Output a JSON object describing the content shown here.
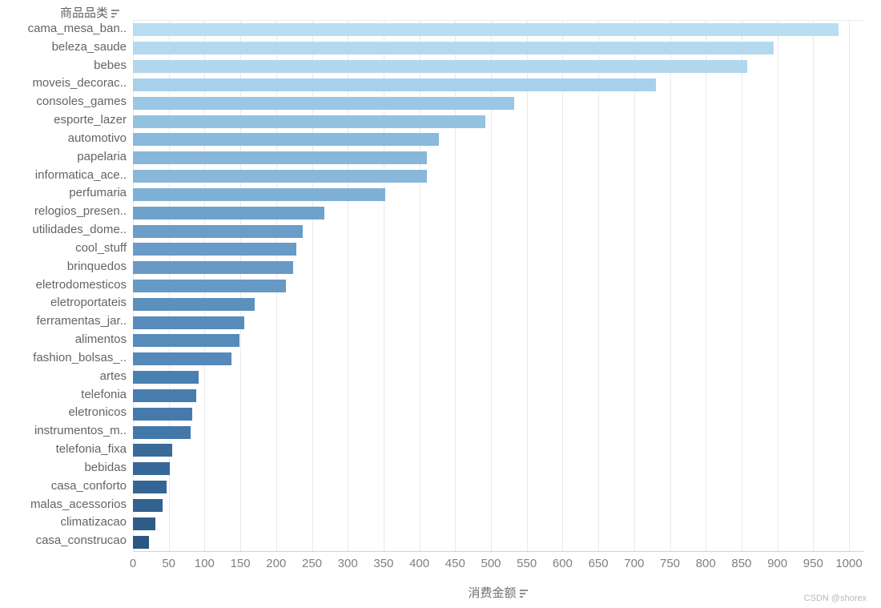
{
  "header": {
    "field_label": "商品品类"
  },
  "axis": {
    "title": "消费金额"
  },
  "watermark": "CSDN @shorex",
  "colors": {
    "background": "#ffffff",
    "gridline": "#e9e9e9",
    "axis_line": "#d4d4d4",
    "label_text": "#646464",
    "tick_text": "#808080",
    "watermark_text": "#b9b9b9"
  },
  "chart_data": {
    "type": "bar",
    "orientation": "horizontal",
    "title": "",
    "xlabel": "消费金额",
    "ylabel": "商品品类",
    "xlim": [
      0,
      1000
    ],
    "grid": true,
    "legend": false,
    "x_ticks": [
      0,
      50,
      100,
      150,
      200,
      250,
      300,
      350,
      400,
      450,
      500,
      550,
      600,
      650,
      700,
      750,
      800,
      850,
      900,
      950,
      1000
    ],
    "categories": [
      "cama_mesa_ban..",
      "beleza_saude",
      "bebes",
      "moveis_decorac..",
      "consoles_games",
      "esporte_lazer",
      "automotivo",
      "papelaria",
      "informatica_ace..",
      "perfumaria",
      "relogios_presen..",
      "utilidades_dome..",
      "cool_stuff",
      "brinquedos",
      "eletrodomesticos",
      "eletroportateis",
      "ferramentas_jar..",
      "alimentos",
      "fashion_bolsas_..",
      "artes",
      "telefonia",
      "eletronicos",
      "instrumentos_m..",
      "telefonia_fixa",
      "bebidas",
      "casa_conforto",
      "malas_acessorios",
      "climatizacao",
      "casa_construcao"
    ],
    "values": [
      985,
      895,
      858,
      730,
      532,
      492,
      427,
      411,
      410,
      352,
      267,
      237,
      228,
      224,
      214,
      170,
      155,
      149,
      138,
      92,
      88,
      83,
      80,
      55,
      51,
      47,
      41,
      31,
      22
    ],
    "bar_colors": [
      "#b9ddf1",
      "#b3d9ef",
      "#b0d7ee",
      "#a7d1ea",
      "#9ac7e5",
      "#94c2e1",
      "#8abadb",
      "#88b7da",
      "#88b7da",
      "#7fb0d5",
      "#6fa2ca",
      "#6a9dc7",
      "#689bc6",
      "#689ac5",
      "#6699c4",
      "#5c90bd",
      "#588cbb",
      "#578bba",
      "#5489b9",
      "#4a7fb2",
      "#487daf",
      "#467aac",
      "#4478aa",
      "#396a99",
      "#376796",
      "#356594",
      "#336190",
      "#2e5c89",
      "#2a5783"
    ]
  }
}
